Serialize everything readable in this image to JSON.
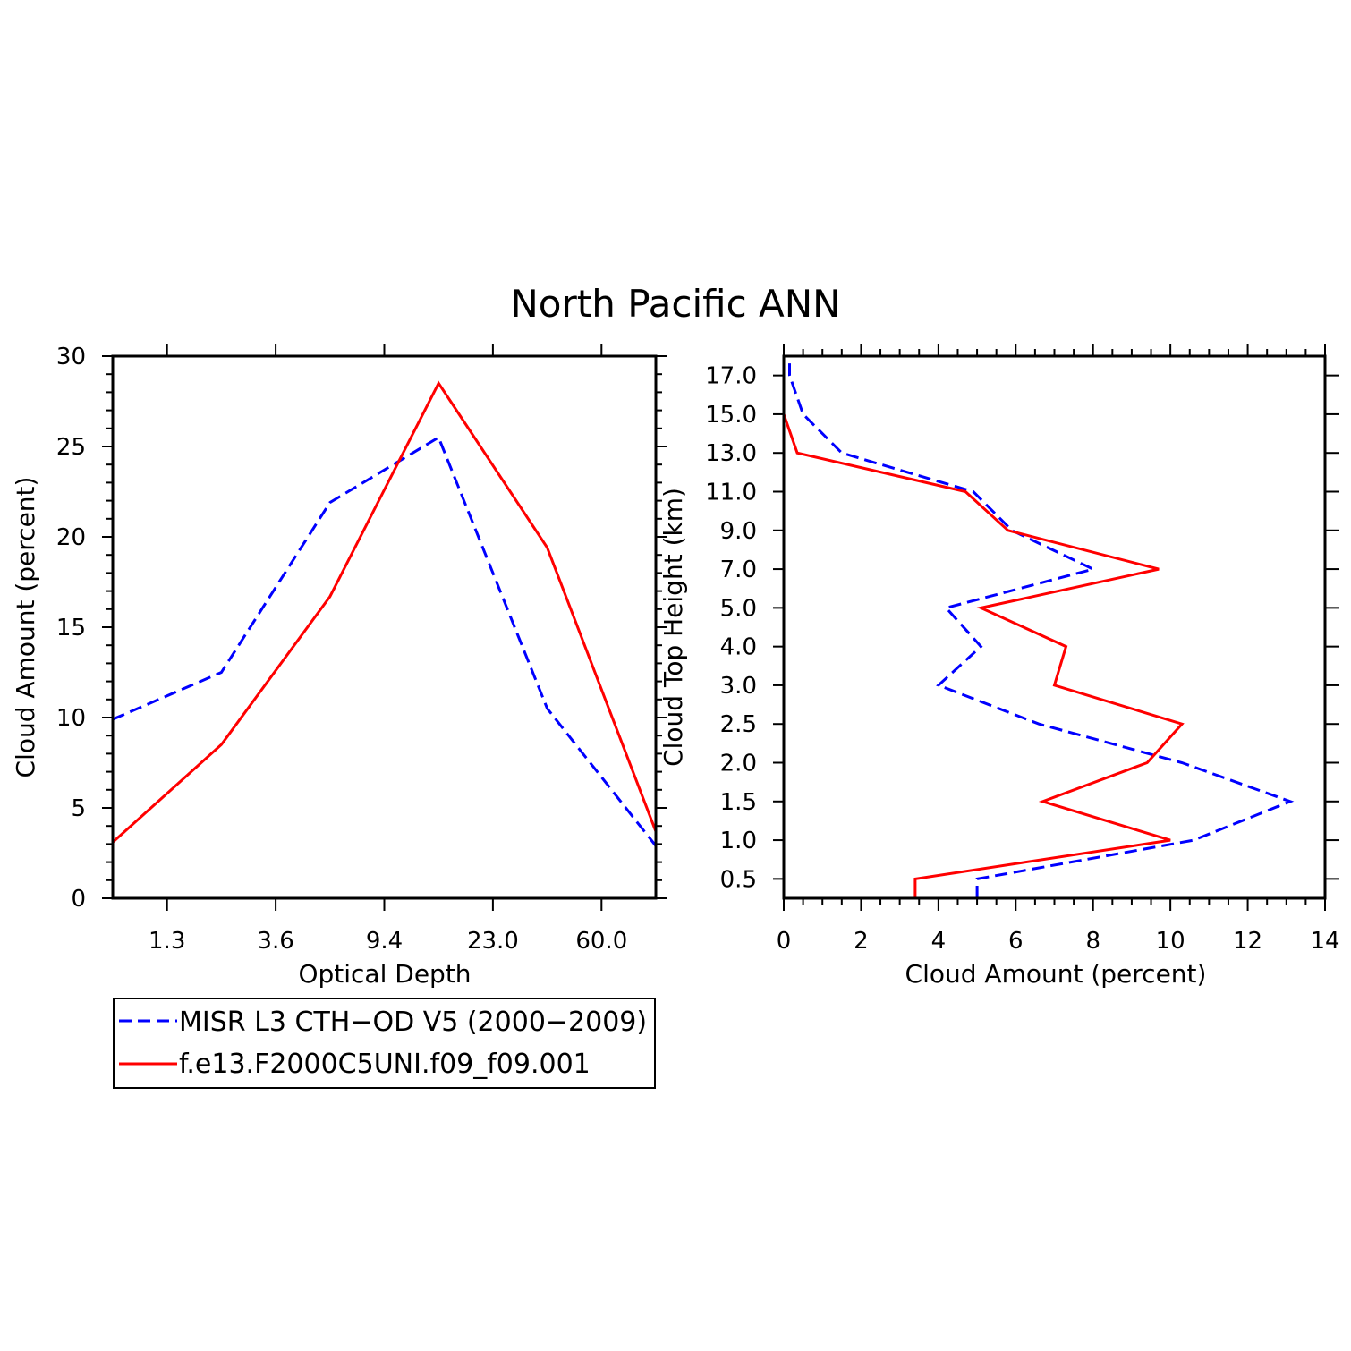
{
  "figure": {
    "title": "North Pacific ANN"
  },
  "legend": {
    "items": [
      {
        "label": "MISR L3 CTH−OD V5 (2000−2009)",
        "color": "#0000ff",
        "dash": "dashed"
      },
      {
        "label": "f.e13.F2000C5UNI.f09_f09.001",
        "color": "#ff0000",
        "dash": "solid"
      }
    ]
  },
  "chart_data": [
    {
      "type": "line",
      "xlabel": "Optical Depth",
      "ylabel": "Cloud Amount (percent)",
      "x_tick_labels": [
        "1.3",
        "3.6",
        "9.4",
        "23.0",
        "60.0"
      ],
      "y_ticks": [
        "0",
        "5",
        "10",
        "15",
        "20",
        "25",
        "30"
      ],
      "ylim": [
        0,
        30
      ],
      "grid": false,
      "series": [
        {
          "name": "MISR L3 CTH−OD V5 (2000−2009)",
          "color": "#0000ff",
          "dash": "dashed",
          "values": [
            9.9,
            12.5,
            21.9,
            25.5,
            10.5,
            2.9
          ]
        },
        {
          "name": "f.e13.F2000C5UNI.f09_f09.001",
          "color": "#ff0000",
          "dash": "solid",
          "values": [
            3.1,
            8.5,
            16.7,
            28.5,
            19.4,
            3.7
          ]
        }
      ]
    },
    {
      "type": "line",
      "xlabel": "Cloud Amount (percent)",
      "ylabel": "Cloud Top Height (km)",
      "xlim": [
        0,
        14
      ],
      "x_ticks": [
        "0",
        "2",
        "4",
        "6",
        "8",
        "10",
        "12",
        "14"
      ],
      "y_tick_labels": [
        "0.5",
        "1.0",
        "1.5",
        "2.0",
        "2.5",
        "3.0",
        "4.0",
        "5.0",
        "7.0",
        "9.0",
        "11.0",
        "13.0",
        "15.0",
        "17.0"
      ],
      "grid": false,
      "series": [
        {
          "name": "MISR L3 CTH−OD V5 (2000−2009)",
          "color": "#0000ff",
          "dash": "dashed",
          "values": [
            5.0,
            10.6,
            13.1,
            10.3,
            6.6,
            4.0,
            5.1,
            4.2,
            8.0,
            5.9,
            4.9,
            1.5,
            0.5,
            0.15
          ]
        },
        {
          "name": "f.e13.F2000C5UNI.f09_f09.001",
          "color": "#ff0000",
          "dash": "solid",
          "values": [
            3.4,
            10.0,
            6.7,
            9.4,
            10.3,
            7.0,
            7.3,
            5.1,
            9.7,
            5.8,
            4.7,
            0.35,
            0.0,
            0.0
          ]
        }
      ]
    }
  ]
}
